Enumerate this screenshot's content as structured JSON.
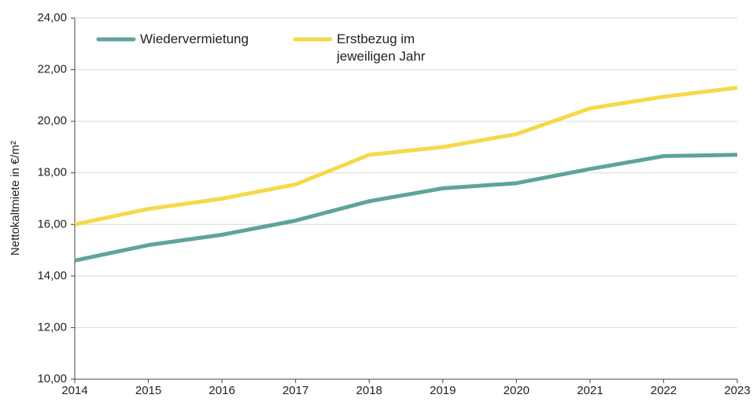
{
  "chart_data": {
    "type": "line",
    "y_label": "Nettokaltmiete in €/m²",
    "x": [
      2014,
      2015,
      2016,
      2017,
      2018,
      2019,
      2020,
      2021,
      2022,
      2023
    ],
    "series": [
      {
        "name": "Wiedervermietung",
        "color": "#5fa39b",
        "values": [
          14.6,
          15.2,
          15.6,
          16.15,
          16.9,
          17.4,
          17.6,
          18.15,
          18.65,
          18.7
        ]
      },
      {
        "name": "Erstbezug im jeweiligen Jahr",
        "color": "#f5d94a",
        "values": [
          16.0,
          16.6,
          17.0,
          17.55,
          18.7,
          19.0,
          19.5,
          20.5,
          20.95,
          21.3
        ]
      }
    ],
    "xlim": [
      2014,
      2023
    ],
    "xticks": [
      2014,
      2015,
      2016,
      2017,
      2018,
      2019,
      2020,
      2021,
      2022,
      2023
    ],
    "ylim": [
      10,
      24
    ],
    "yticks": [
      {
        "value": 10,
        "label": "10,00"
      },
      {
        "value": 12,
        "label": "12,00"
      },
      {
        "value": 14,
        "label": "14,00"
      },
      {
        "value": 16,
        "label": "16,00"
      },
      {
        "value": 18,
        "label": "18,00"
      },
      {
        "value": 20,
        "label": "20,00"
      },
      {
        "value": 22,
        "label": "22,00"
      },
      {
        "value": 24,
        "label": "24,00"
      }
    ],
    "grid": true,
    "legend": "top-left"
  }
}
